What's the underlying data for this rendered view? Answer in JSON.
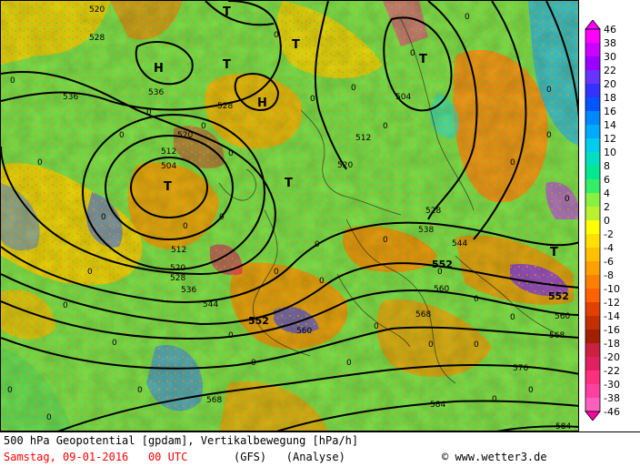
{
  "map": {
    "contour_labels": [
      "520",
      "528",
      "536",
      "536",
      "528",
      "520",
      "512",
      "504",
      "512",
      "520",
      "528",
      "536",
      "544",
      "552",
      "560",
      "568",
      "504",
      "512",
      "520",
      "528",
      "538",
      "544",
      "552",
      "560",
      "568",
      "552",
      "560",
      "568",
      "576",
      "584",
      "584"
    ],
    "pressure_centers": [
      "T",
      "T",
      "T",
      "T",
      "T",
      "T",
      "H",
      "H",
      "T"
    ],
    "zero_labels": [
      "0"
    ]
  },
  "legend": {
    "values": [
      "46",
      "38",
      "30",
      "22",
      "20",
      "18",
      "16",
      "14",
      "12",
      "10",
      "8",
      "6",
      "4",
      "2",
      "0",
      "-2",
      "-4",
      "-6",
      "-8",
      "-10",
      "-12",
      "-14",
      "-16",
      "-18",
      "-20",
      "-22",
      "-30",
      "-38",
      "-46"
    ],
    "colors": [
      "#ff00ff",
      "#cc00ff",
      "#9900ff",
      "#6633ff",
      "#3333ff",
      "#0055ff",
      "#0088ff",
      "#00aaff",
      "#00ccee",
      "#00e0c0",
      "#00e890",
      "#33ee66",
      "#88f040",
      "#bbf030",
      "#ffff00",
      "#ffe000",
      "#ffc000",
      "#ffa000",
      "#ff8000",
      "#ff6000",
      "#e04000",
      "#c03000",
      "#a02000",
      "#cc2040",
      "#e02060",
      "#ff3080",
      "#ff40a0",
      "#ff60c0",
      "#ff00aa"
    ]
  },
  "footer": {
    "description": "500 hPa Geopotential [gpdam], Vertikalbewegung [hPa/h]",
    "date": "Samstag, 09-01-2016   00 UTC",
    "model": "(GFS)   (Analyse)",
    "credit": "© www.wetter3.de",
    "date_color": "#ff0000"
  }
}
